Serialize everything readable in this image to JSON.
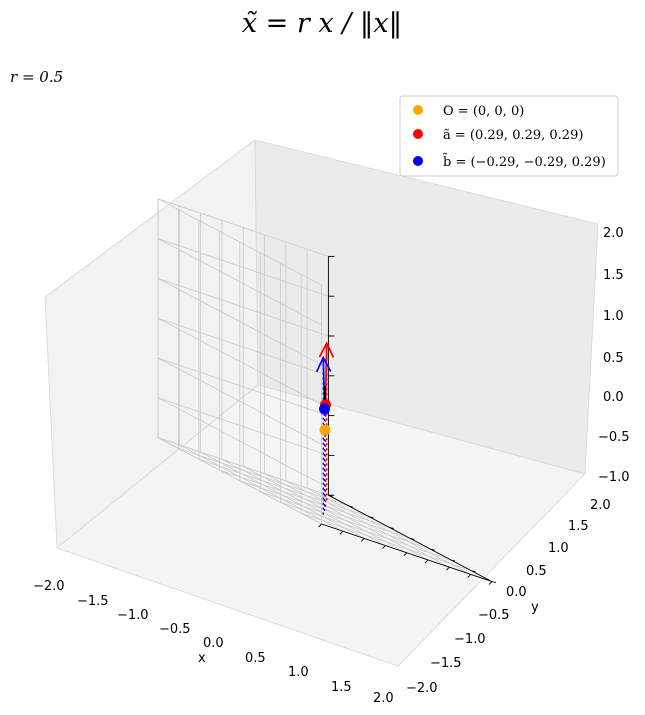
{
  "figure": {
    "title": "x̃ = r x / ‖x‖",
    "annotation": "r = 0.5"
  },
  "chart_data": {
    "type": "scatter",
    "projection": "3d",
    "xlabel": "x",
    "ylabel": "y",
    "zlabel": "",
    "xlim": [
      -2,
      2
    ],
    "ylim": [
      -2,
      2
    ],
    "zlim": [
      -1,
      2
    ],
    "x_ticks": [
      "−2.0",
      "−1.5",
      "−1.0",
      "−0.5",
      "0.0",
      "0.5",
      "1.0",
      "1.5",
      "2.0"
    ],
    "y_ticks": [
      "−2.0",
      "−1.5",
      "−1.0",
      "−0.5",
      "0.0",
      "0.5",
      "1.0",
      "1.5",
      "2.0"
    ],
    "z_ticks": [
      "−1.0",
      "−0.5",
      "0.0",
      "0.5",
      "1.0",
      "1.5",
      "2.0"
    ],
    "grid": true,
    "legend_position": "top-right",
    "points": [
      {
        "name": "O = (0, 0, 0)",
        "x": 0,
        "y": 0,
        "z": 0,
        "color": "#ffa500"
      },
      {
        "name": "ã = (0.29, 0.29, 0.29)",
        "x": 0.29,
        "y": 0.29,
        "z": 0.29,
        "color": "#ff0000"
      },
      {
        "name": "b̃ = (−0.29, −0.29, 0.29)",
        "x": -0.29,
        "y": -0.29,
        "z": 0.29,
        "color": "#0000ff"
      }
    ],
    "vectors": [
      {
        "from": [
          0.29,
          0.29,
          0.29
        ],
        "to": [
          1.0,
          1.0,
          1.0
        ],
        "color": "#ff0000"
      },
      {
        "from": [
          -0.29,
          -0.29,
          0.29
        ],
        "to": [
          -1.0,
          -1.0,
          1.0
        ],
        "color": "#0000ff"
      }
    ],
    "drop_lines_to_z": -1,
    "arc": {
      "from": "ã",
      "to": "b̃",
      "color": "#000000"
    }
  }
}
